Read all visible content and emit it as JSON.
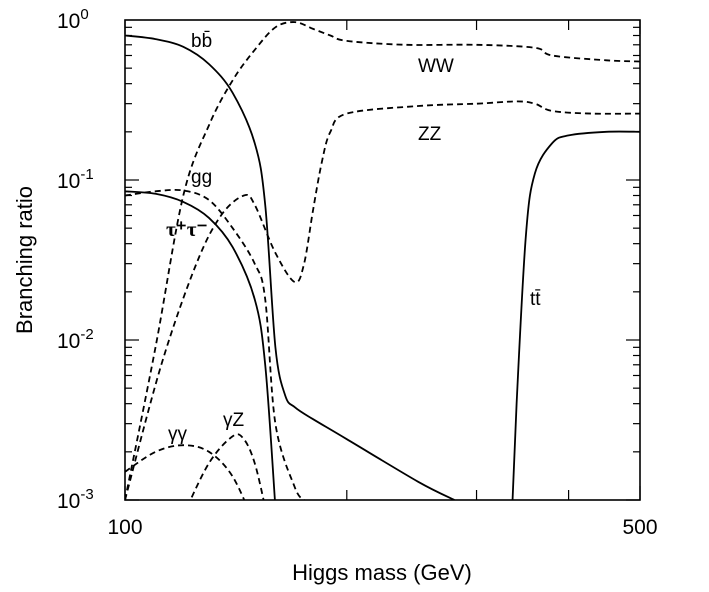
{
  "chart_data": {
    "type": "line",
    "x_scale": "log",
    "y_scale": "log",
    "xlim": [
      100,
      500
    ],
    "ylim": [
      0.001,
      1
    ],
    "xlabel": "Higgs mass (GeV)",
    "ylabel": "Branching ratio",
    "x_tick_labels": [
      {
        "value": 100,
        "label": "100"
      },
      {
        "value": 500,
        "label": "500"
      }
    ],
    "y_tick_labels": [
      {
        "value": 1,
        "base": "10",
        "exp": "0"
      },
      {
        "value": 0.1,
        "base": "10",
        "exp": "-1"
      },
      {
        "value": 0.01,
        "base": "10",
        "exp": "-2"
      },
      {
        "value": 0.001,
        "base": "10",
        "exp": "-3"
      }
    ],
    "grid": false,
    "series": [
      {
        "name": "bb̄",
        "style": "solid",
        "points": [
          [
            100,
            0.8
          ],
          [
            110,
            0.76
          ],
          [
            120,
            0.68
          ],
          [
            130,
            0.53
          ],
          [
            140,
            0.35
          ],
          [
            150,
            0.17
          ],
          [
            155,
            0.07
          ],
          [
            160,
            0.009
          ],
          [
            165,
            0.0045
          ],
          [
            170,
            0.0038
          ],
          [
            180,
            0.0032
          ],
          [
            200,
            0.0024
          ],
          [
            250,
            0.0013
          ],
          [
            280,
            0.001
          ]
        ]
      },
      {
        "name": "WW",
        "style": "dashed",
        "points": [
          [
            100,
            0.001
          ],
          [
            110,
            0.009
          ],
          [
            120,
            0.08
          ],
          [
            130,
            0.22
          ],
          [
            140,
            0.42
          ],
          [
            150,
            0.65
          ],
          [
            160,
            0.9
          ],
          [
            170,
            0.97
          ],
          [
            180,
            0.88
          ],
          [
            190,
            0.8
          ],
          [
            200,
            0.74
          ],
          [
            240,
            0.7
          ],
          [
            300,
            0.7
          ],
          [
            360,
            0.67
          ],
          [
            380,
            0.6
          ],
          [
            450,
            0.56
          ],
          [
            500,
            0.55
          ]
        ]
      },
      {
        "name": "ZZ",
        "style": "dashed",
        "points": [
          [
            100,
            0.001
          ],
          [
            112,
            0.007
          ],
          [
            125,
            0.03
          ],
          [
            135,
            0.06
          ],
          [
            145,
            0.08
          ],
          [
            150,
            0.07
          ],
          [
            160,
            0.035
          ],
          [
            170,
            0.023
          ],
          [
            175,
            0.03
          ],
          [
            180,
            0.065
          ],
          [
            185,
            0.13
          ],
          [
            190,
            0.2
          ],
          [
            200,
            0.26
          ],
          [
            250,
            0.29
          ],
          [
            300,
            0.3
          ],
          [
            340,
            0.31
          ],
          [
            360,
            0.3
          ],
          [
            380,
            0.27
          ],
          [
            430,
            0.26
          ],
          [
            500,
            0.26
          ]
        ]
      },
      {
        "name": "gg",
        "style": "dashed",
        "points": [
          [
            100,
            0.08
          ],
          [
            110,
            0.085
          ],
          [
            120,
            0.086
          ],
          [
            130,
            0.075
          ],
          [
            140,
            0.05
          ],
          [
            150,
            0.03
          ],
          [
            155,
            0.018
          ],
          [
            160,
            0.003
          ],
          [
            170,
            0.0012
          ],
          [
            175,
            0.001
          ]
        ]
      },
      {
        "name": "τ⁺τ⁻",
        "style": "solid",
        "points": [
          [
            100,
            0.085
          ],
          [
            110,
            0.082
          ],
          [
            120,
            0.073
          ],
          [
            130,
            0.058
          ],
          [
            140,
            0.038
          ],
          [
            150,
            0.018
          ],
          [
            155,
            0.007
          ],
          [
            160,
            0.0009
          ]
        ]
      },
      {
        "name": "γγ",
        "style": "dashed",
        "points": [
          [
            100,
            0.0015
          ],
          [
            110,
            0.002
          ],
          [
            120,
            0.0022
          ],
          [
            130,
            0.002
          ],
          [
            140,
            0.0014
          ],
          [
            150,
            0.0007
          ]
        ]
      },
      {
        "name": "γZ",
        "style": "dashed",
        "points": [
          [
            120,
            0.0008
          ],
          [
            130,
            0.0017
          ],
          [
            140,
            0.0025
          ],
          [
            145,
            0.0024
          ],
          [
            150,
            0.0017
          ],
          [
            155,
            0.0009
          ]
        ]
      },
      {
        "name": "tt̄",
        "style": "solid",
        "points": [
          [
            335,
            0.0008
          ],
          [
            340,
            0.004
          ],
          [
            350,
            0.045
          ],
          [
            360,
            0.11
          ],
          [
            380,
            0.17
          ],
          [
            400,
            0.19
          ],
          [
            450,
            0.2
          ],
          [
            500,
            0.2
          ]
        ]
      }
    ]
  }
}
